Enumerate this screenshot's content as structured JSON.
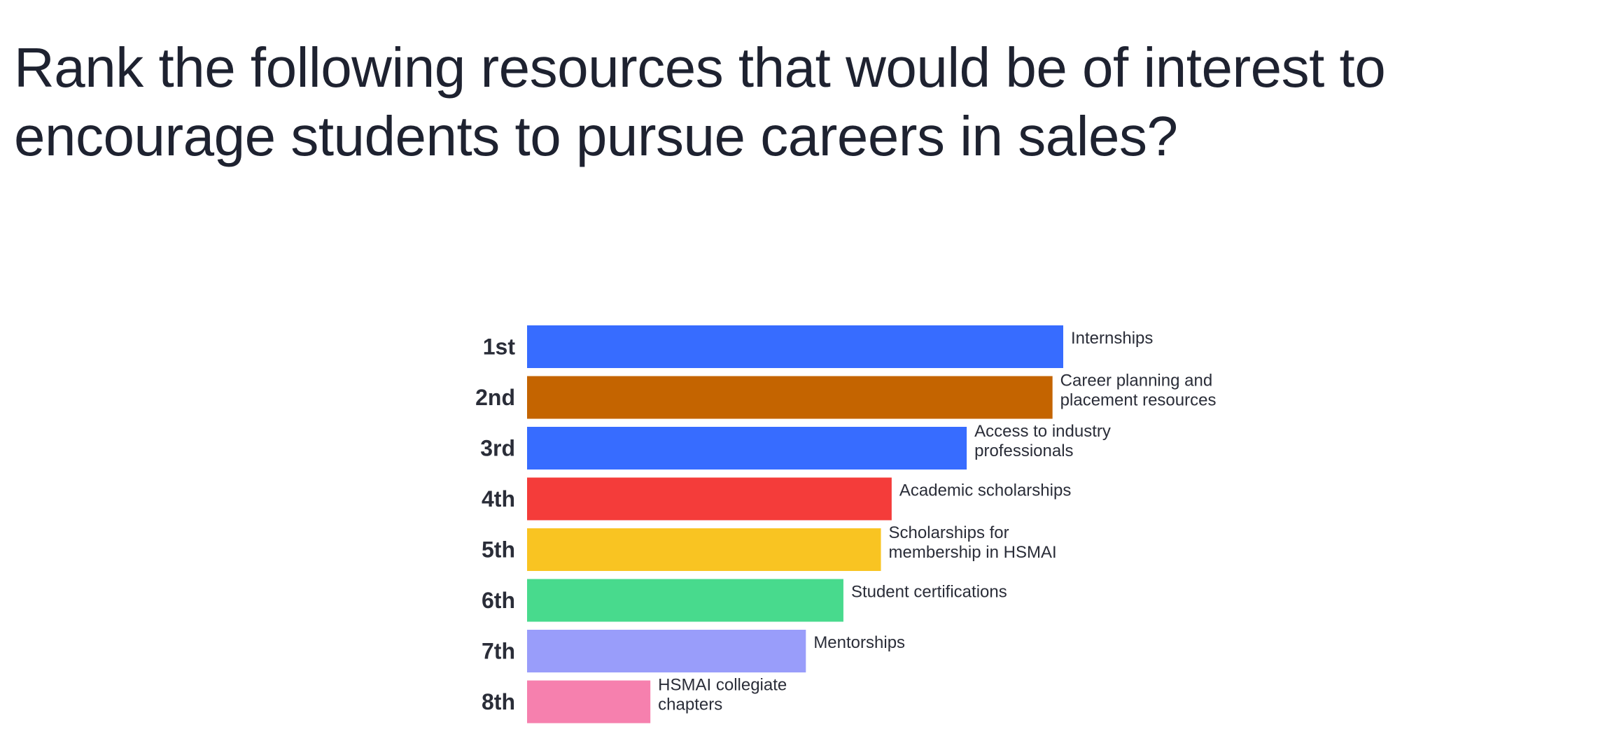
{
  "chart_data": {
    "type": "bar",
    "orientation": "horizontal",
    "title": "Rank the following resources that would be of interest to encourage students to pursue careers in sales?",
    "categories": [
      "1st",
      "2nd",
      "3rd",
      "4th",
      "5th",
      "6th",
      "7th",
      "8th"
    ],
    "labels": [
      [
        "Internships"
      ],
      [
        "Career planning and",
        "placement resources"
      ],
      [
        "Access to industry",
        "professionals"
      ],
      [
        "Academic scholarships"
      ],
      [
        "Scholarships for",
        "membership in HSMAI"
      ],
      [
        "Student certifications"
      ],
      [
        "Mentorships"
      ],
      [
        "HSMAI collegiate",
        "chapters"
      ]
    ],
    "values": [
      100,
      98,
      82,
      68,
      66,
      59,
      52,
      23
    ],
    "colors": [
      "#376cff",
      "#c46400",
      "#376cff",
      "#f43c3a",
      "#f9c422",
      "#48da8d",
      "#999dfa",
      "#f680ae"
    ],
    "xlim": [
      0,
      100
    ],
    "grid": false,
    "legend": "none"
  }
}
